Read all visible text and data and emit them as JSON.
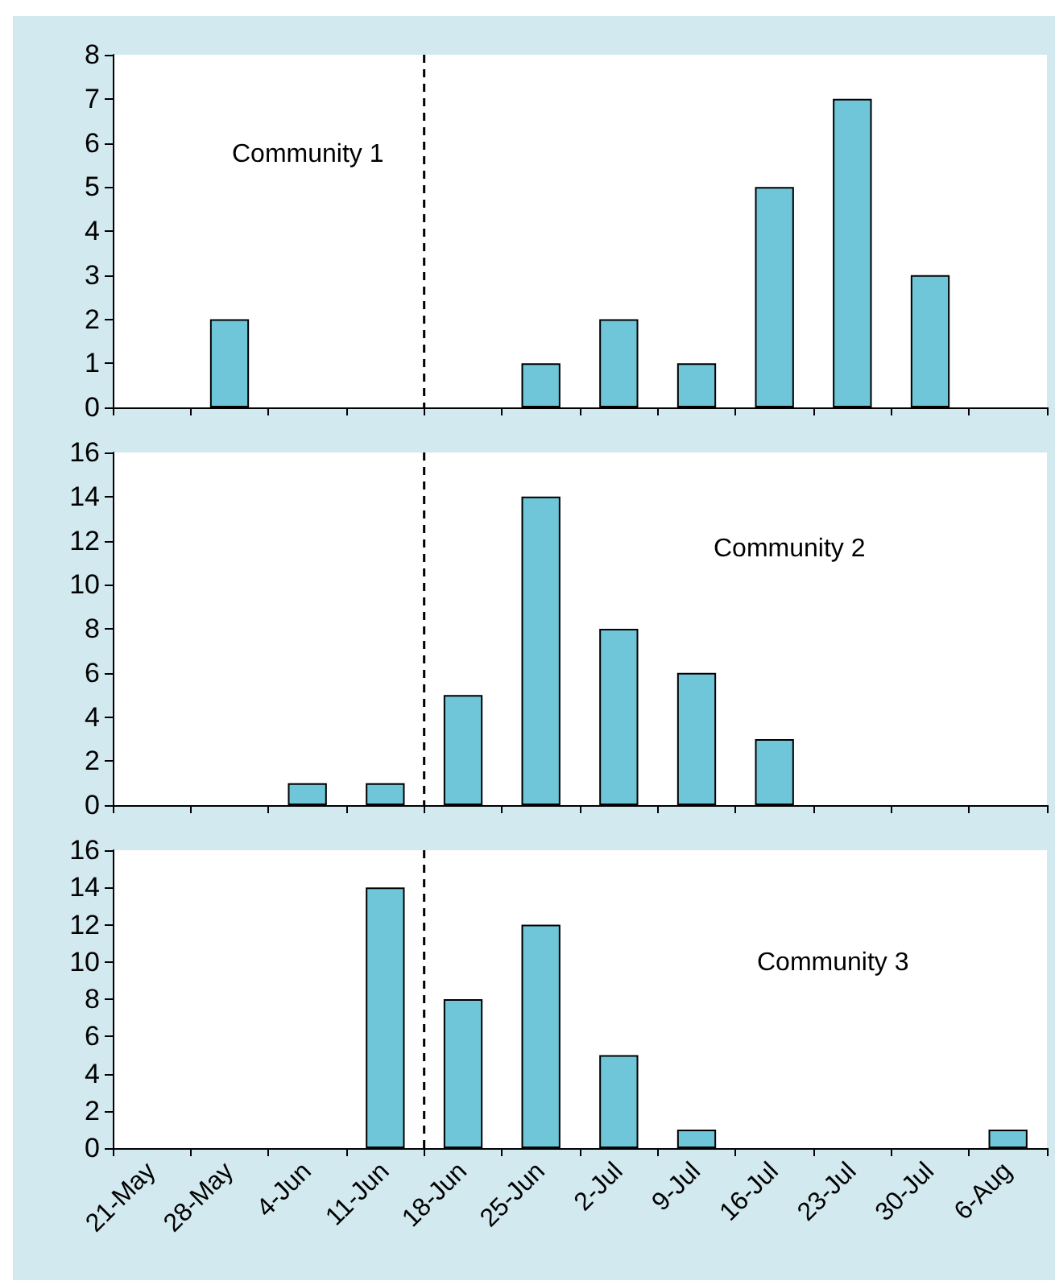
{
  "chart_data": [
    {
      "type": "bar",
      "categories": [
        "21-May",
        "28-May",
        "4-Jun",
        "11-Jun",
        "18-Jun",
        "25-Jun",
        "2-Jul",
        "9-Jul",
        "16-Jul",
        "23-Jul",
        "30-Jul",
        "6-Aug"
      ],
      "values": [
        0,
        2,
        0,
        0,
        0,
        1,
        2,
        1,
        5,
        7,
        3,
        0
      ],
      "color": "#6ec6d8",
      "ylim": [
        0,
        8
      ],
      "yticks": [
        0,
        1,
        2,
        3,
        4,
        5,
        6,
        7,
        8
      ],
      "tick_labels": "y",
      "annotations": [
        "Community 1"
      ],
      "ref_lines": [
        {
          "axis": "x",
          "value": "18-Jun",
          "line_style": "dashed",
          "color": "#000000"
        }
      ]
    },
    {
      "type": "bar",
      "categories": [
        "21-May",
        "28-May",
        "4-Jun",
        "11-Jun",
        "18-Jun",
        "25-Jun",
        "2-Jul",
        "9-Jul",
        "16-Jul",
        "23-Jul",
        "30-Jul",
        "6-Aug"
      ],
      "values": [
        0,
        0,
        1,
        1,
        5,
        14,
        8,
        6,
        3,
        0,
        0,
        0
      ],
      "color": "#6ec6d8",
      "ylim": [
        0,
        16
      ],
      "yticks": [
        0,
        2,
        4,
        6,
        8,
        10,
        12,
        14,
        16
      ],
      "tick_labels": "y",
      "annotations": [
        "Community 2"
      ],
      "ref_lines": [
        {
          "axis": "x",
          "value": "18-Jun",
          "line_style": "dashed",
          "color": "#000000"
        }
      ]
    },
    {
      "type": "bar",
      "categories": [
        "21-May",
        "28-May",
        "4-Jun",
        "11-Jun",
        "18-Jun",
        "25-Jun",
        "2-Jul",
        "9-Jul",
        "16-Jul",
        "23-Jul",
        "30-Jul",
        "6-Aug"
      ],
      "values": [
        0,
        0,
        0,
        14,
        8,
        12,
        5,
        1,
        0,
        0,
        0,
        1
      ],
      "color": "#6ec6d8",
      "ylim": [
        0,
        16
      ],
      "yticks": [
        0,
        2,
        4,
        6,
        8,
        10,
        12,
        14,
        16
      ],
      "annotations": [
        "Community 3"
      ],
      "ref_lines": [
        {
          "axis": "x",
          "value": "18-Jun",
          "line_style": "dashed",
          "color": "#000000"
        }
      ]
    }
  ]
}
